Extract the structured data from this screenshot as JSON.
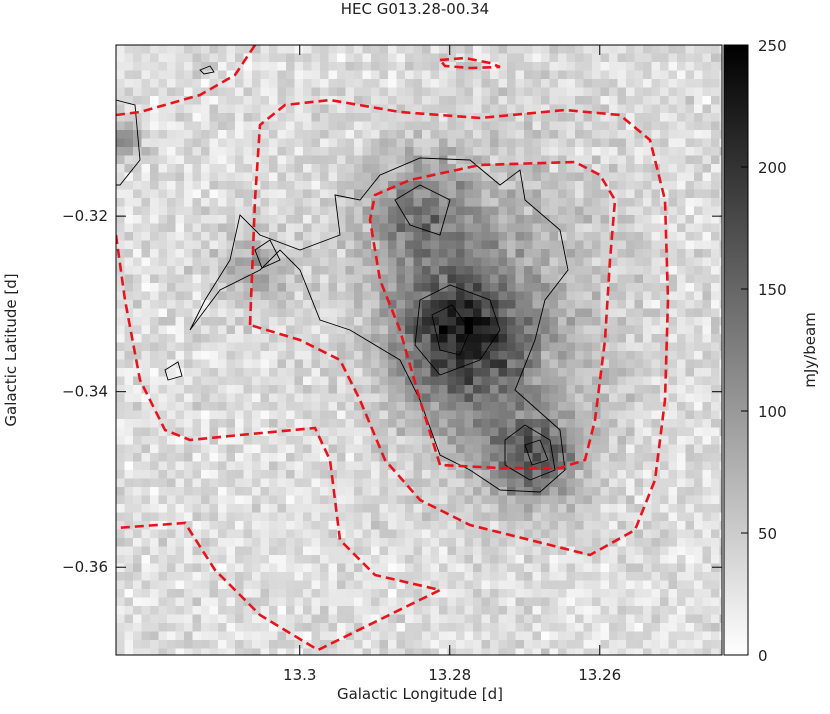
{
  "chart_data": {
    "type": "image",
    "title": "HEC G013.28-00.34",
    "xlabel": "Galactic Longitude [d]",
    "ylabel": "Galactic Latitude [d]",
    "xlim": [
      13.3245,
      13.2437
    ],
    "xticks": [
      13.3,
      13.28,
      13.26
    ],
    "ylim": [
      -0.37,
      -0.3005
    ],
    "yticks": [
      {
        "value": -0.32,
        "label": "−0.32"
      },
      {
        "value": -0.34,
        "label": "−0.34"
      },
      {
        "value": -0.36,
        "label": "−0.36"
      }
    ],
    "colorbar": {
      "label": "mJy/beam",
      "lim": [
        0,
        250
      ],
      "ticks": [
        0,
        50,
        100,
        150,
        200,
        250
      ]
    }
  }
}
